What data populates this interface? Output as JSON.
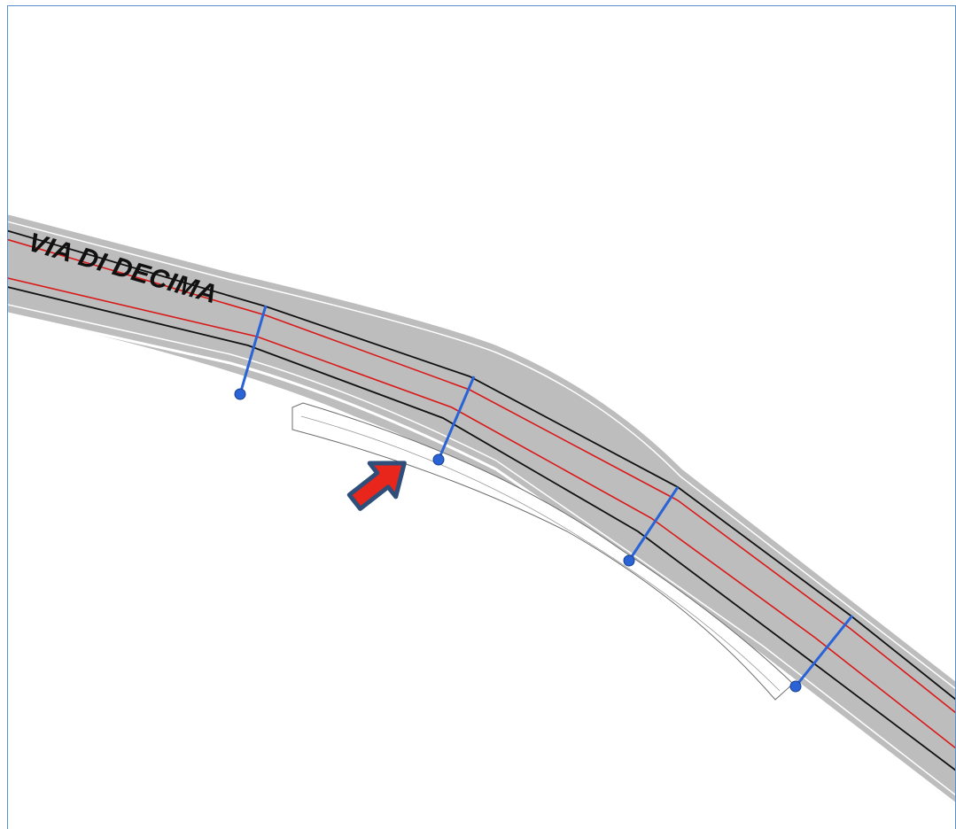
{
  "map": {
    "road_name": "VIA DI DECIMA",
    "colors": {
      "road_fill": "#bdbdbd",
      "road_edge": "#ffffff",
      "lane_line": "#111111",
      "centerline": "#d91818",
      "section_line": "#2a63d6",
      "section_marker": "#2a63d6",
      "arrow": "#e8261c",
      "arrow_outline": "#2f4f7a",
      "frame": "#5b8fc9"
    },
    "icons": {
      "pointer": "arrow-icon",
      "section_marker": "circle-marker-icon"
    }
  }
}
